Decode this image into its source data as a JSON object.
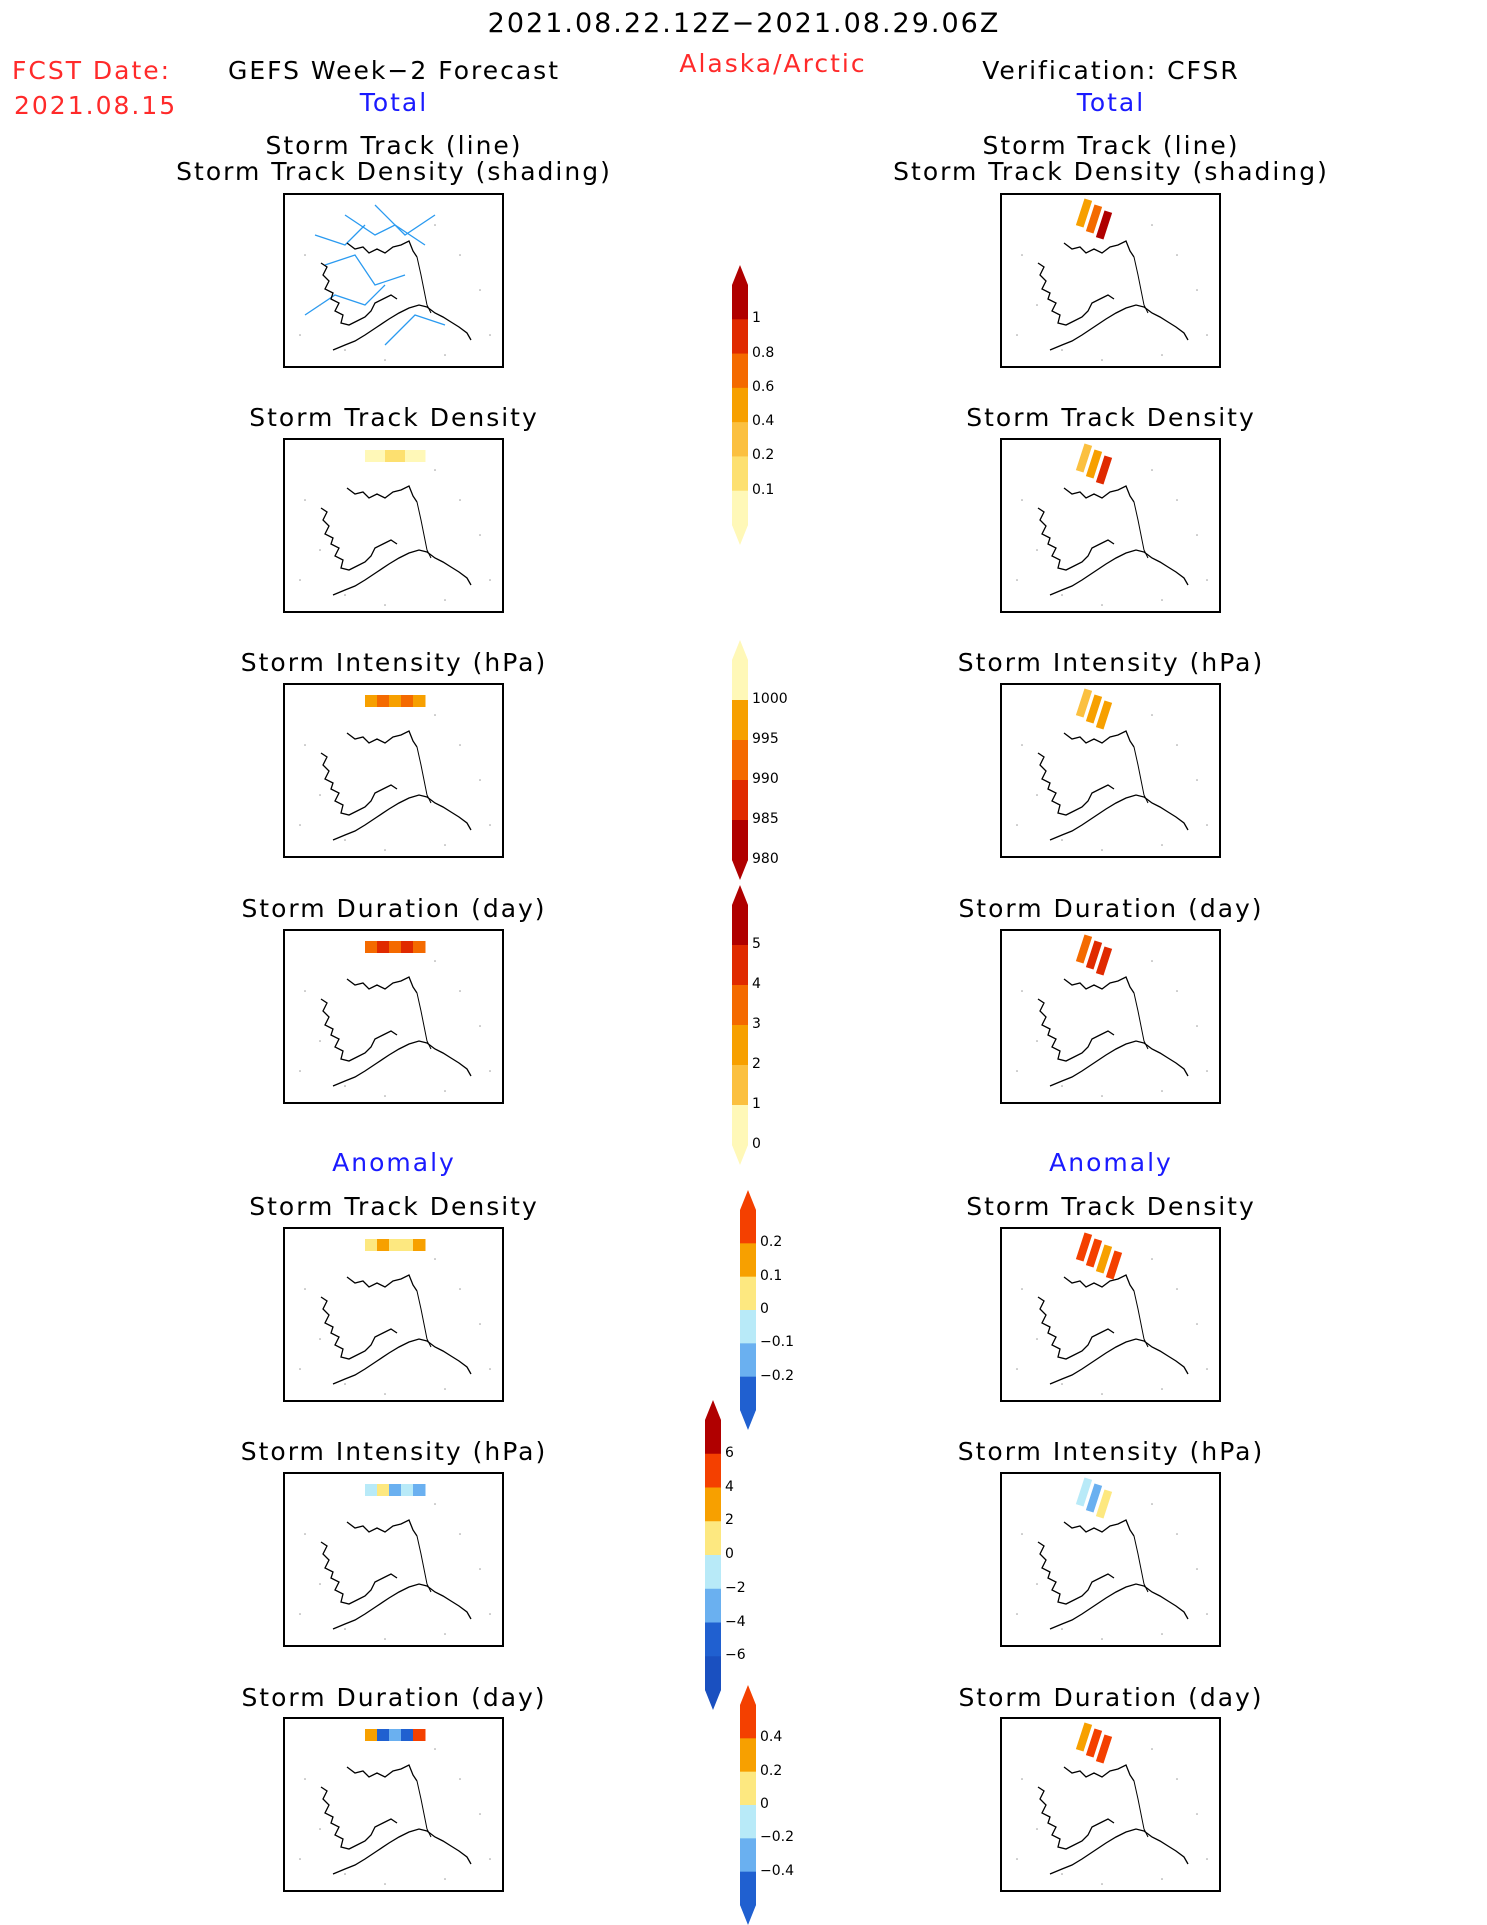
{
  "header": {
    "period": "2021.08.22.12Z−2021.08.29.06Z",
    "fcst_label": "FCST Date:",
    "fcst_date": "2021.08.15",
    "left_title": "GEFS Week−2 Forecast",
    "region": "Alaska/Arctic",
    "right_title": "Verification: CFSR",
    "total_left": "Total",
    "total_right": "Total",
    "anomaly_left": "Anomaly",
    "anomaly_right": "Anomaly"
  },
  "panel_titles": {
    "p1_line1": "Storm Track (line)",
    "p1_line2": "Storm Track Density (shading)",
    "p2": "Storm Track Density",
    "p3": "Storm Intensity (hPa)",
    "p4": "Storm Duration (day)",
    "p5": "Storm Track Density",
    "p6": "Storm Intensity (hPa)",
    "p7": "Storm Duration (day)"
  },
  "colorbars": {
    "density": [
      "1",
      "0.8",
      "0.6",
      "0.4",
      "0.2",
      "0.1"
    ],
    "intensity": [
      "1000",
      "995",
      "990",
      "985",
      "980"
    ],
    "duration": [
      "5",
      "4",
      "3",
      "2",
      "1",
      "0"
    ],
    "density_anom": [
      "0.2",
      "0.1",
      "0",
      "−0.1",
      "−0.2"
    ],
    "intensity_anom": [
      "6",
      "4",
      "2",
      "0",
      "−2",
      "−4",
      "−6"
    ],
    "duration_anom": [
      "0.4",
      "0.2",
      "0",
      "−0.2",
      "−0.4"
    ]
  },
  "colors": {
    "title_red": "#ff2a2a",
    "title_blue": "#1a1aff",
    "track_line": "#2a9af0",
    "warm_scale": [
      "#fff8b8",
      "#fde070",
      "#fbc040",
      "#f7a000",
      "#f46a00",
      "#e02a00",
      "#b00000"
    ],
    "anom_scale": [
      "#2060d0",
      "#6ab0f0",
      "#b8eaf8",
      "#fde880",
      "#f7a000",
      "#f44000"
    ]
  }
}
